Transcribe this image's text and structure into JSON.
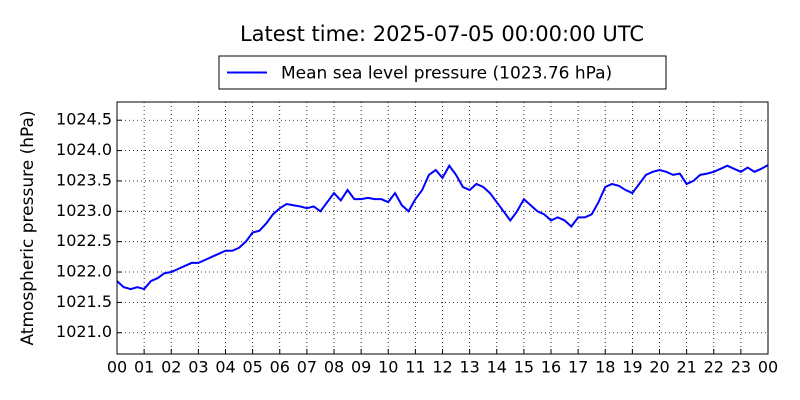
{
  "chart_data": {
    "type": "line",
    "title": "Latest time: 2025-07-05 00:00:00 UTC",
    "y_label": "Atmospheric pressure (hPa)",
    "x": [
      0,
      0.25,
      0.5,
      0.75,
      1,
      1.25,
      1.5,
      1.75,
      2,
      2.25,
      2.5,
      2.75,
      3,
      3.25,
      3.5,
      3.75,
      4,
      4.25,
      4.5,
      4.75,
      5,
      5.25,
      5.5,
      5.75,
      6,
      6.25,
      6.5,
      6.75,
      7,
      7.25,
      7.5,
      7.75,
      8,
      8.25,
      8.5,
      8.75,
      9,
      9.25,
      9.5,
      9.75,
      10,
      10.25,
      10.5,
      10.75,
      11,
      11.25,
      11.5,
      11.75,
      12,
      12.25,
      12.5,
      12.75,
      13,
      13.25,
      13.5,
      13.75,
      14,
      14.25,
      14.5,
      14.75,
      15,
      15.25,
      15.5,
      15.75,
      16,
      16.25,
      16.5,
      16.75,
      17,
      17.25,
      17.5,
      17.75,
      18,
      18.25,
      18.5,
      18.75,
      19,
      19.25,
      19.5,
      19.75,
      20,
      20.25,
      20.5,
      20.75,
      21,
      21.25,
      21.5,
      21.75,
      22,
      22.25,
      22.5,
      22.75,
      23,
      23.25,
      23.5,
      23.75,
      24
    ],
    "series": [
      {
        "name": "Mean sea level pressure (1023.76 hPa)",
        "color": "#0000ff",
        "values": [
          1021.85,
          1021.75,
          1021.72,
          1021.75,
          1021.72,
          1021.85,
          1021.9,
          1021.98,
          1022.0,
          1022.05,
          1022.1,
          1022.15,
          1022.15,
          1022.2,
          1022.25,
          1022.3,
          1022.35,
          1022.35,
          1022.4,
          1022.5,
          1022.65,
          1022.68,
          1022.8,
          1022.95,
          1023.05,
          1023.12,
          1023.1,
          1023.08,
          1023.05,
          1023.08,
          1023.0,
          1023.15,
          1023.3,
          1023.18,
          1023.35,
          1023.2,
          1023.2,
          1023.22,
          1023.2,
          1023.2,
          1023.15,
          1023.3,
          1023.1,
          1023.0,
          1023.2,
          1023.35,
          1023.6,
          1023.68,
          1023.55,
          1023.75,
          1023.6,
          1023.4,
          1023.35,
          1023.45,
          1023.4,
          1023.3,
          1023.15,
          1023.0,
          1022.85,
          1023.0,
          1023.2,
          1023.1,
          1023.0,
          1022.95,
          1022.85,
          1022.9,
          1022.85,
          1022.75,
          1022.9,
          1022.9,
          1022.95,
          1023.15,
          1023.4,
          1023.45,
          1023.42,
          1023.35,
          1023.3,
          1023.45,
          1023.6,
          1023.65,
          1023.68,
          1023.65,
          1023.6,
          1023.62,
          1023.45,
          1023.5,
          1023.6,
          1023.62,
          1023.65,
          1023.7,
          1023.75,
          1023.7,
          1023.65,
          1023.72,
          1023.65,
          1023.7,
          1023.76
        ]
      }
    ],
    "xlim": [
      0,
      24
    ],
    "xticks": [
      {
        "value": 0,
        "label": "00"
      },
      {
        "value": 1,
        "label": "01"
      },
      {
        "value": 2,
        "label": "02"
      },
      {
        "value": 3,
        "label": "03"
      },
      {
        "value": 4,
        "label": "04"
      },
      {
        "value": 5,
        "label": "05"
      },
      {
        "value": 6,
        "label": "06"
      },
      {
        "value": 7,
        "label": "07"
      },
      {
        "value": 8,
        "label": "08"
      },
      {
        "value": 9,
        "label": "09"
      },
      {
        "value": 10,
        "label": "10"
      },
      {
        "value": 11,
        "label": "11"
      },
      {
        "value": 12,
        "label": "12"
      },
      {
        "value": 13,
        "label": "13"
      },
      {
        "value": 14,
        "label": "14"
      },
      {
        "value": 15,
        "label": "15"
      },
      {
        "value": 16,
        "label": "16"
      },
      {
        "value": 17,
        "label": "17"
      },
      {
        "value": 18,
        "label": "18"
      },
      {
        "value": 19,
        "label": "19"
      },
      {
        "value": 20,
        "label": "20"
      },
      {
        "value": 21,
        "label": "21"
      },
      {
        "value": 22,
        "label": "22"
      },
      {
        "value": 23,
        "label": "23"
      },
      {
        "value": 24,
        "label": "00"
      }
    ],
    "ylim": [
      1020.65,
      1024.8
    ],
    "yticks": [
      {
        "value": 1021.0,
        "label": "1021.0"
      },
      1021.5,
      {
        "value": 1022.0,
        "label": "1022.0"
      },
      1022.5,
      {
        "value": 1023.0,
        "label": "1023.0"
      },
      1023.5,
      {
        "value": 1024.0,
        "label": "1024.0"
      },
      1024.5
    ],
    "grid": true
  }
}
